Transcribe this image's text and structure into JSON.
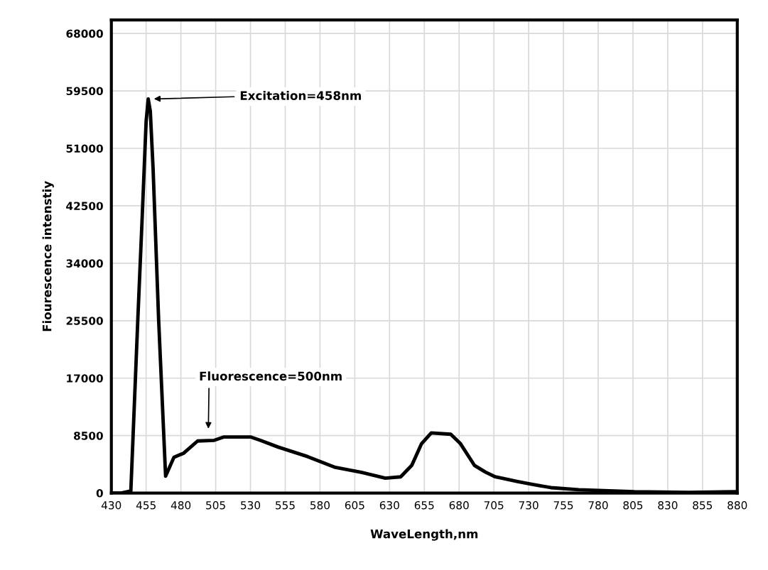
{
  "chart_data": {
    "type": "line",
    "xlabel": "WaveLength,nm",
    "ylabel": "Fiourescence intenstiy",
    "xlim": [
      430,
      880
    ],
    "xticks": [
      430,
      455,
      480,
      505,
      530,
      555,
      580,
      605,
      630,
      655,
      680,
      705,
      730,
      755,
      780,
      805,
      830,
      855,
      880
    ],
    "ylim": [
      0,
      70000
    ],
    "yticks": [
      0,
      8500,
      17000,
      25500,
      34000,
      42500,
      51000,
      59500,
      68000
    ],
    "grid": true,
    "marker": "none",
    "line_style": "solid",
    "series": [
      {
        "color": "#000000",
        "x": [
          430,
          437,
          444,
          449,
          452,
          455,
          456.5,
          458,
          460,
          464,
          469,
          475,
          482,
          492,
          504,
          511,
          530,
          537,
          550,
          571,
          591,
          609,
          627,
          638,
          646,
          653,
          660,
          674,
          681,
          691,
          699,
          706,
          722,
          732,
          746,
          766,
          806,
          845,
          880
        ],
        "values": [
          0,
          0,
          300,
          25600,
          40000,
          55000,
          58300,
          56500,
          48000,
          25600,
          2500,
          5300,
          5900,
          7700,
          7800,
          8300,
          8300,
          7800,
          6800,
          5400,
          3800,
          3100,
          2200,
          2400,
          4100,
          7300,
          8900,
          8700,
          7300,
          4100,
          3100,
          2400,
          1700,
          1300,
          800,
          500,
          200,
          100,
          200
        ]
      }
    ],
    "annotations": [
      "Excitation=458nm",
      "Fluorescence=500nm"
    ]
  }
}
